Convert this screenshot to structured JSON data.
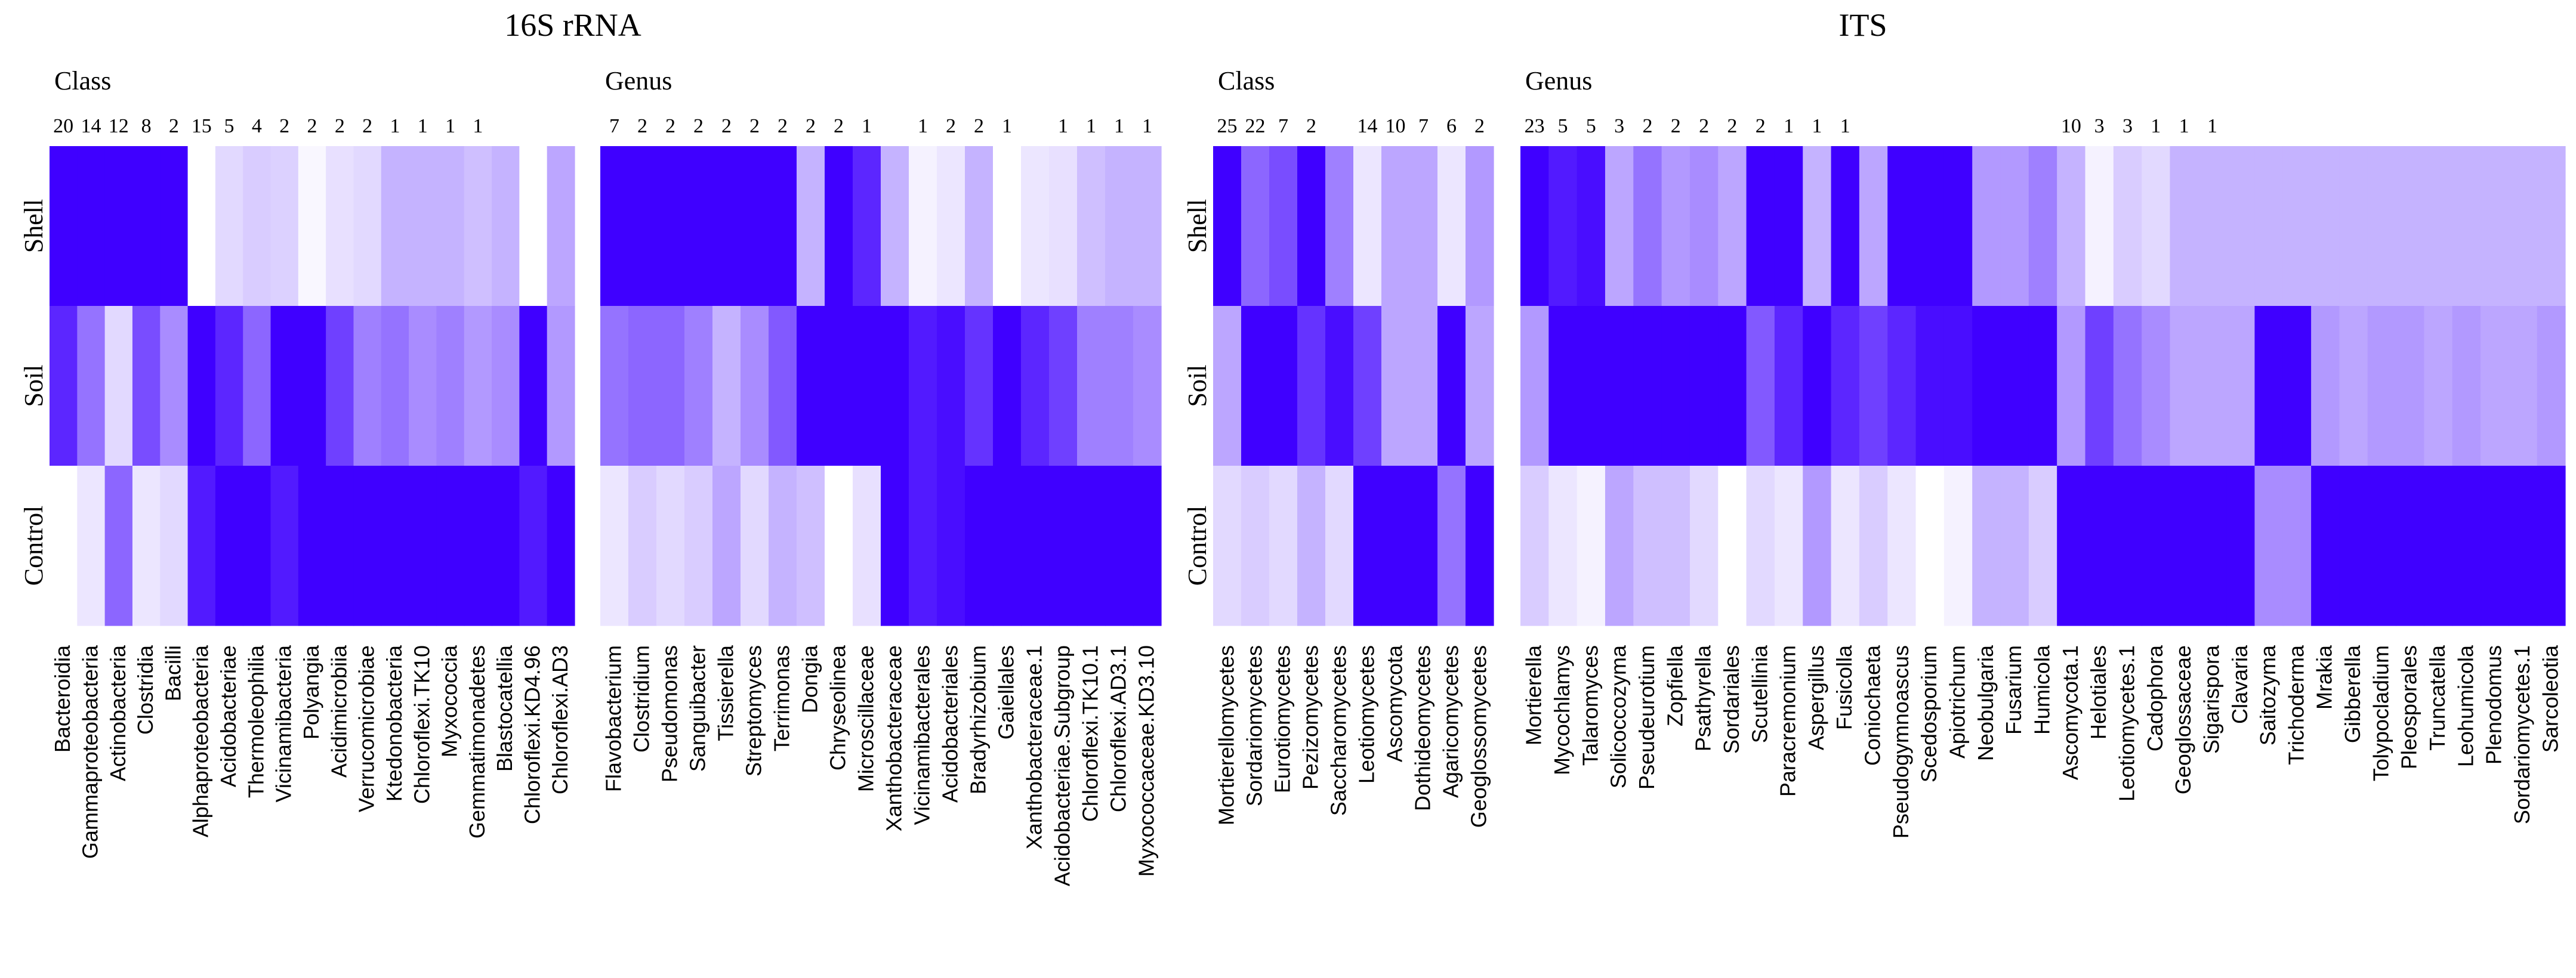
{
  "panel_titles": [
    "16S rRNA",
    "ITS"
  ],
  "chart_data": [
    {
      "type": "heatmap",
      "section": "16S rRNA",
      "title": "Class",
      "rows": [
        "Shell",
        "Soil",
        "Control"
      ],
      "columns": [
        "Bacteroidia",
        "Gammaproteobacteria",
        "Actinobacteria",
        "Clostridia",
        "Bacilli",
        "Alphaproteobacteria",
        "Acidobacteriae",
        "Thermoleophilia",
        "Vicinamibacteria",
        "Polyangia",
        "Acidimicrobiia",
        "Verrucomicrobiae",
        "Ktedonobacteria",
        "Chloroflexi.TK10",
        "Myxococcia",
        "Gemmatimonadetes",
        "Blastocatellia",
        "Chloroflexi.KD4.96",
        "Chloroflexi.AD3"
      ],
      "counts": [
        "20",
        "14",
        "12",
        "8",
        "2",
        "15",
        "5",
        "4",
        "2",
        "2",
        "2",
        "2",
        "1",
        "1",
        "1",
        "1",
        "",
        "",
        ""
      ],
      "values": [
        [
          1.0,
          1.0,
          1.0,
          1.0,
          1.0,
          0.0,
          0.15,
          0.2,
          0.18,
          0.03,
          0.12,
          0.15,
          0.3,
          0.3,
          0.3,
          0.25,
          0.3,
          0.0,
          0.35
        ],
        [
          0.85,
          0.55,
          0.15,
          0.7,
          0.45,
          1.0,
          0.85,
          0.6,
          1.0,
          1.0,
          0.75,
          0.5,
          0.55,
          0.45,
          0.5,
          0.4,
          0.45,
          1.0,
          0.4
        ],
        [
          0.0,
          0.1,
          0.6,
          0.1,
          0.15,
          0.9,
          1.0,
          1.0,
          0.9,
          1.0,
          1.0,
          1.0,
          1.0,
          1.0,
          1.0,
          1.0,
          1.0,
          0.9,
          1.0
        ]
      ]
    },
    {
      "type": "heatmap",
      "section": "16S rRNA",
      "title": "Genus",
      "rows": [
        "Shell",
        "Soil",
        "Control"
      ],
      "columns": [
        "Flavobacterium",
        "Clostridium",
        "Pseudomonas",
        "Sanguibacter",
        "Tissierella",
        "Streptomyces",
        "Terrimonas",
        "Dongia",
        "Chryseolinea",
        "Microscillaceae",
        "Xanthobacteraceae",
        "Vicinamibacterales",
        "Acidobacteriales",
        "Bradyrhizobium",
        "Gaiellales",
        "Xanthobacteraceae.1",
        "Acidobacteriae.Subgroup",
        "Chloroflexi.TK10.1",
        "Chloroflexi.AD3.1",
        "Myxococcaceae.KD3.10"
      ],
      "counts": [
        "7",
        "2",
        "2",
        "2",
        "2",
        "2",
        "2",
        "2",
        "2",
        "1",
        "",
        "1",
        "2",
        "2",
        "1",
        "",
        "1",
        "1",
        "1",
        "1"
      ],
      "values": [
        [
          1.0,
          1.0,
          1.0,
          1.0,
          1.0,
          1.0,
          1.0,
          0.3,
          1.0,
          0.85,
          0.3,
          0.05,
          0.1,
          0.3,
          0.0,
          0.1,
          0.12,
          0.25,
          0.3,
          0.3
        ],
        [
          0.55,
          0.6,
          0.6,
          0.5,
          0.3,
          0.45,
          0.65,
          1.0,
          1.0,
          1.0,
          1.0,
          0.9,
          0.95,
          0.8,
          1.0,
          0.85,
          0.75,
          0.5,
          0.5,
          0.45
        ],
        [
          0.1,
          0.2,
          0.15,
          0.2,
          0.35,
          0.15,
          0.3,
          0.25,
          0.0,
          0.12,
          1.0,
          0.9,
          0.95,
          1.0,
          1.0,
          1.0,
          1.0,
          1.0,
          1.0,
          1.0
        ]
      ]
    },
    {
      "type": "heatmap",
      "section": "ITS",
      "title": "Class",
      "rows": [
        "Shell",
        "Soil",
        "Control"
      ],
      "columns": [
        "Mortierellomycetes",
        "Sordariomycetes",
        "Eurotiomycetes",
        "Pezizomycetes",
        "Saccharomycetes",
        "Leotiomycetes",
        "Ascomycota",
        "Dothideomycetes",
        "Agaricomycetes",
        "Geoglossomycetes"
      ],
      "counts": [
        "25",
        "22",
        "7",
        "2",
        "",
        "14",
        "10",
        "7",
        "6",
        "2"
      ],
      "values": [
        [
          1.0,
          0.6,
          0.7,
          1.0,
          0.5,
          0.1,
          0.35,
          0.35,
          0.1,
          0.4
        ],
        [
          0.35,
          1.0,
          1.0,
          0.8,
          0.95,
          0.75,
          0.35,
          0.35,
          1.0,
          0.35
        ],
        [
          0.15,
          0.2,
          0.15,
          0.3,
          0.15,
          1.0,
          1.0,
          1.0,
          0.55,
          1.0
        ]
      ]
    },
    {
      "type": "heatmap",
      "section": "ITS",
      "title": "Genus",
      "rows": [
        "Shell",
        "Soil",
        "Control"
      ],
      "columns": [
        "Mortierella",
        "Mycochlamys",
        "Talaromyces",
        "Solicoccozyma",
        "Pseudeurotium",
        "Zopfiella",
        "Psathyrella",
        "Sordariales",
        "Scutellinia",
        "Paracremonium",
        "Aspergillus",
        "Fusicolla",
        "Coniochaeta",
        "Pseudogymnoascus",
        "Scedosporium",
        "Apiotrichum",
        "Neobulgaria",
        "Fusarium",
        "Humicola",
        "Ascomycota.1",
        "Helotiales",
        "Leotiomycetes.1",
        "Cadophora",
        "Geoglossaceae",
        "Sigarispora",
        "Clavaria",
        "Saitozyma",
        "Trichoderma",
        "Mrakia",
        "Gibberella",
        "Tolypocladium",
        "Pleosporales",
        "Truncatella",
        "Leohumicola",
        "Plenodomus",
        "Sordariomycetes.1",
        "Sarcoleotia"
      ],
      "counts": [
        "23",
        "5",
        "5",
        "3",
        "2",
        "2",
        "2",
        "2",
        "2",
        "1",
        "1",
        "1",
        "",
        "",
        "",
        "",
        "",
        "",
        "",
        "10",
        "3",
        "3",
        "1",
        "1",
        "1",
        "",
        "",
        "",
        "",
        "",
        "",
        "",
        "",
        "",
        "",
        "",
        ""
      ],
      "values": [
        [
          1.0,
          0.9,
          0.95,
          0.35,
          0.55,
          0.4,
          0.45,
          0.35,
          1.0,
          1.0,
          0.3,
          1.0,
          0.35,
          1.0,
          1.0,
          1.0,
          0.4,
          0.4,
          0.5,
          0.3,
          0.05,
          0.2,
          0.15,
          0.3,
          0.3,
          0.3,
          0.3,
          0.3,
          0.3,
          0.3,
          0.3,
          0.3,
          0.3,
          0.3,
          0.3,
          0.3,
          0.3
        ],
        [
          0.4,
          1.0,
          1.0,
          1.0,
          1.0,
          1.0,
          1.0,
          1.0,
          0.65,
          0.85,
          1.0,
          0.85,
          0.75,
          0.85,
          0.95,
          0.95,
          1.0,
          1.0,
          1.0,
          0.4,
          0.75,
          0.55,
          0.45,
          0.35,
          0.35,
          0.35,
          1.0,
          1.0,
          0.4,
          0.35,
          0.4,
          0.4,
          0.35,
          0.4,
          0.35,
          0.35,
          0.4
        ],
        [
          0.2,
          0.1,
          0.05,
          0.35,
          0.25,
          0.25,
          0.15,
          0.0,
          0.15,
          0.1,
          0.4,
          0.1,
          0.2,
          0.1,
          0.0,
          0.05,
          0.3,
          0.3,
          0.2,
          1.0,
          1.0,
          1.0,
          1.0,
          1.0,
          1.0,
          1.0,
          0.45,
          0.45,
          1.0,
          1.0,
          1.0,
          1.0,
          1.0,
          1.0,
          1.0,
          1.0,
          1.0
        ]
      ]
    }
  ],
  "color_low": "#ffffff",
  "color_high": "#3f00ff"
}
